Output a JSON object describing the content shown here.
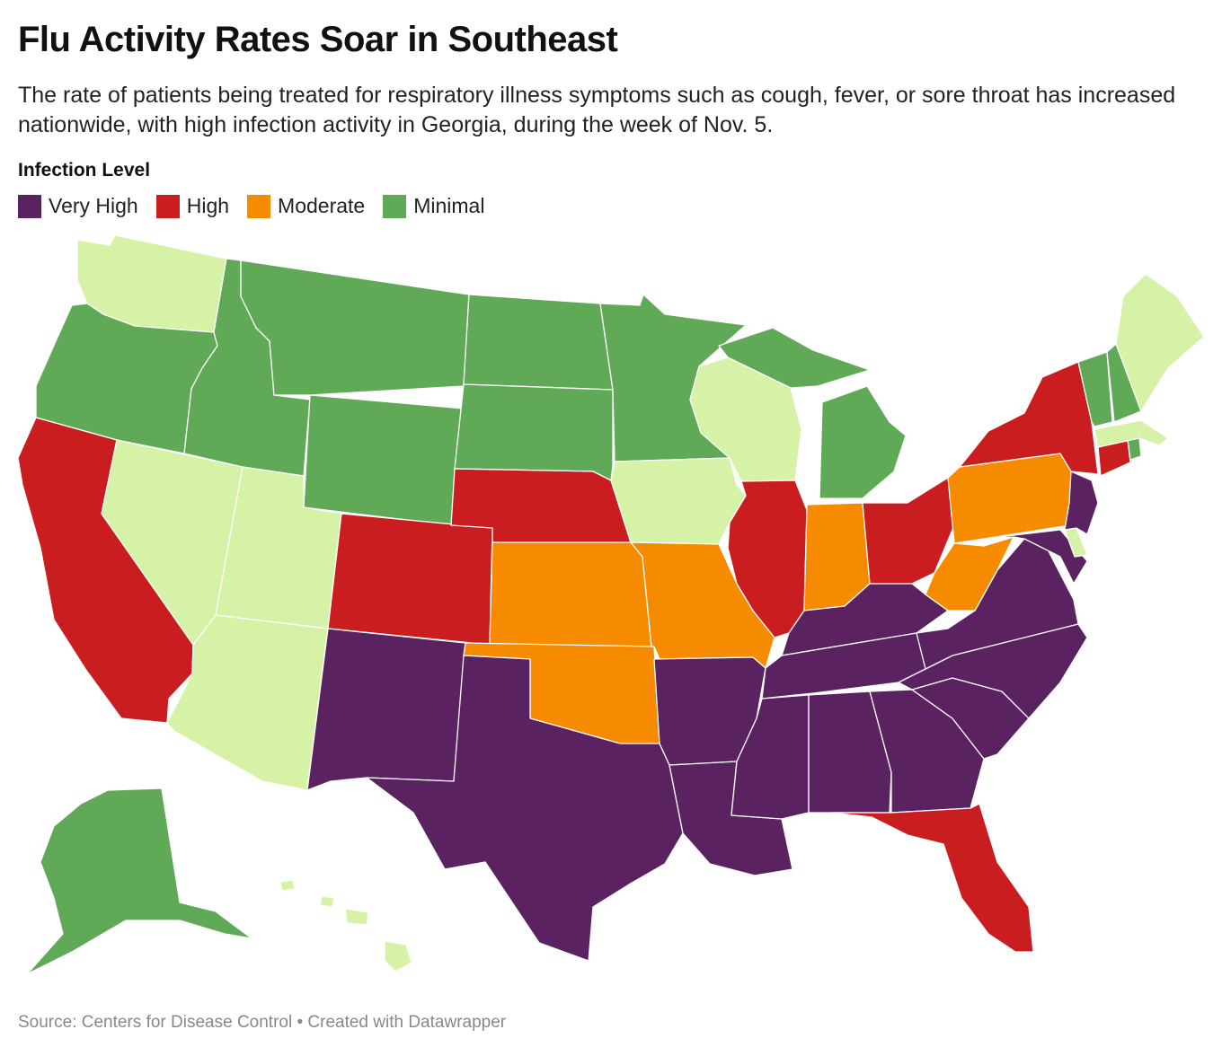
{
  "title": "Flu Activity Rates Soar in Southeast",
  "subtitle": "The rate of patients being treated for respiratory illness symptoms such as cough, fever, or sore throat has increased nationwide, with high infection activity in Georgia, during the week of Nov. 5.",
  "legend": {
    "title": "Infection Level",
    "items": [
      {
        "label": "Very High",
        "color": "#5a2260"
      },
      {
        "label": "High",
        "color": "#c91d1f"
      },
      {
        "label": "Moderate",
        "color": "#f78b00"
      },
      {
        "label": "Minimal",
        "color": "#60a957"
      }
    ]
  },
  "unlabeled_level_color": "#d6f2a6",
  "states": {
    "WA": "Low",
    "OR": "Minimal",
    "CA": "High",
    "NV": "Low",
    "ID": "Minimal",
    "MT": "Minimal",
    "WY": "Minimal",
    "UT": "Low",
    "AZ": "Low",
    "CO": "High",
    "NM": "Very High",
    "ND": "Minimal",
    "SD": "Minimal",
    "NE": "High",
    "KS": "Moderate",
    "OK": "Moderate",
    "TX": "Very High",
    "MN": "Minimal",
    "IA": "Low",
    "MO": "Moderate",
    "AR": "Very High",
    "LA": "Very High",
    "WI": "Low",
    "IL": "High",
    "MI": "Minimal",
    "IN": "Moderate",
    "OH": "High",
    "KY": "Very High",
    "TN": "Very High",
    "MS": "Very High",
    "AL": "Very High",
    "GA": "Very High",
    "FL": "High",
    "SC": "Very High",
    "NC": "Very High",
    "VA": "Very High",
    "WV": "Moderate",
    "PA": "Moderate",
    "NY": "High",
    "VT": "Minimal",
    "NH": "Minimal",
    "ME": "Low",
    "MA": "Low",
    "CT": "High",
    "RI": "Minimal",
    "NJ": "Very High",
    "DE": "Low",
    "MD": "Very High",
    "AK": "Minimal",
    "HI": "Low"
  },
  "footer": "Source: Centers for Disease Control • Created with Datawrapper"
}
